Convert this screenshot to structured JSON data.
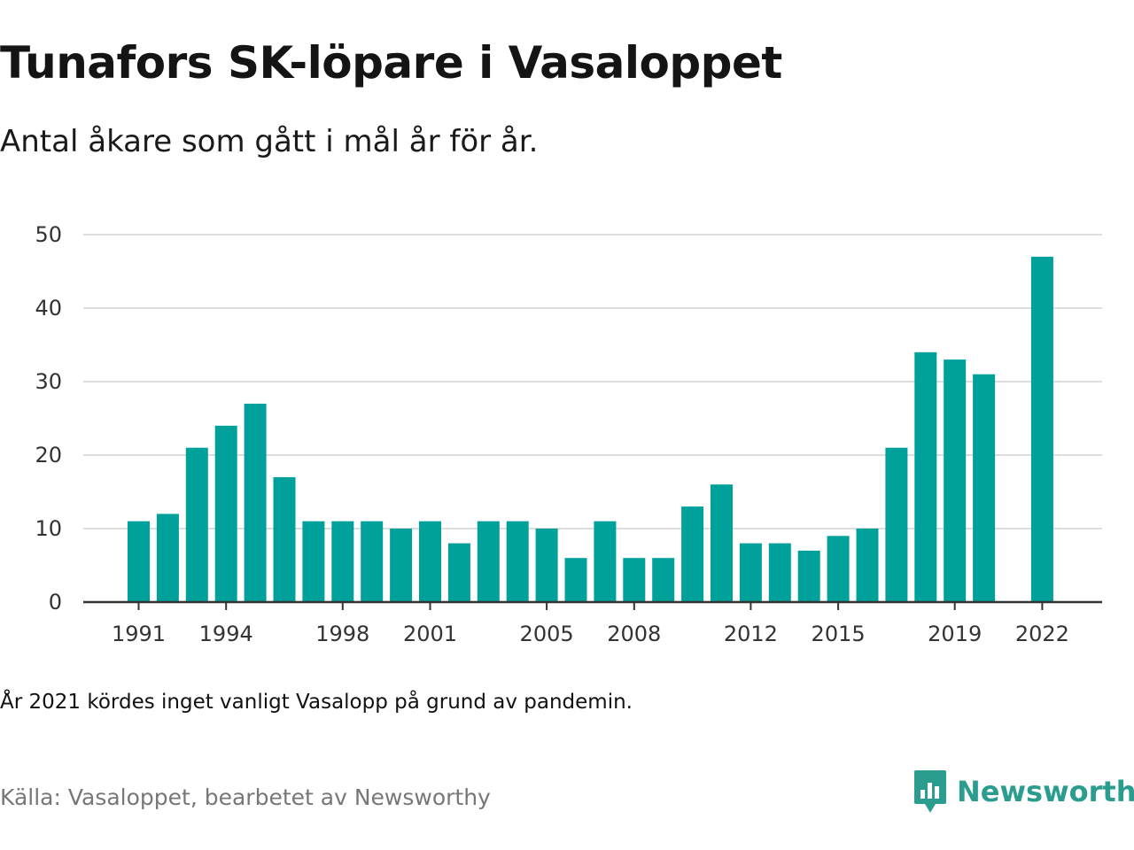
{
  "header": {
    "title": "Tunafors SK-löpare i Vasaloppet",
    "subtitle": "Antal åkare som gått i mål år för år."
  },
  "footer": {
    "note": "År 2021 kördes inget vanligt Vasalopp på grund av pandemin.",
    "source": "Källa: Vasaloppet, bearbetet av Newsworthy",
    "brand": "Newsworthy"
  },
  "colors": {
    "bar": "#00a19a",
    "grid": "#dddddd",
    "axis": "#333333",
    "brand": "#2a9d8f"
  },
  "icons": {
    "logo": "newsworthy-logo-icon"
  },
  "chart_data": {
    "type": "bar",
    "title": "Tunafors SK-löpare i Vasaloppet",
    "subtitle": "Antal åkare som gått i mål år för år.",
    "xlabel": "",
    "ylabel": "",
    "ylim": [
      0,
      50
    ],
    "yticks": [
      0,
      10,
      20,
      30,
      40,
      50
    ],
    "xticks": [
      "1991",
      "1994",
      "1998",
      "2001",
      "2005",
      "2008",
      "2012",
      "2015",
      "2019",
      "2022"
    ],
    "grid": true,
    "legend": "none",
    "categories": [
      "1991",
      "1992",
      "1993",
      "1994",
      "1995",
      "1996",
      "1997",
      "1998",
      "1999",
      "2000",
      "2001",
      "2002",
      "2003",
      "2004",
      "2005",
      "2006",
      "2007",
      "2008",
      "2009",
      "2010",
      "2011",
      "2012",
      "2013",
      "2014",
      "2015",
      "2016",
      "2017",
      "2018",
      "2019",
      "2020",
      "2021",
      "2022"
    ],
    "values": [
      11,
      12,
      21,
      24,
      27,
      17,
      11,
      11,
      11,
      10,
      11,
      8,
      11,
      11,
      10,
      6,
      11,
      6,
      6,
      13,
      16,
      8,
      8,
      7,
      9,
      10,
      21,
      34,
      33,
      31,
      null,
      47
    ]
  }
}
